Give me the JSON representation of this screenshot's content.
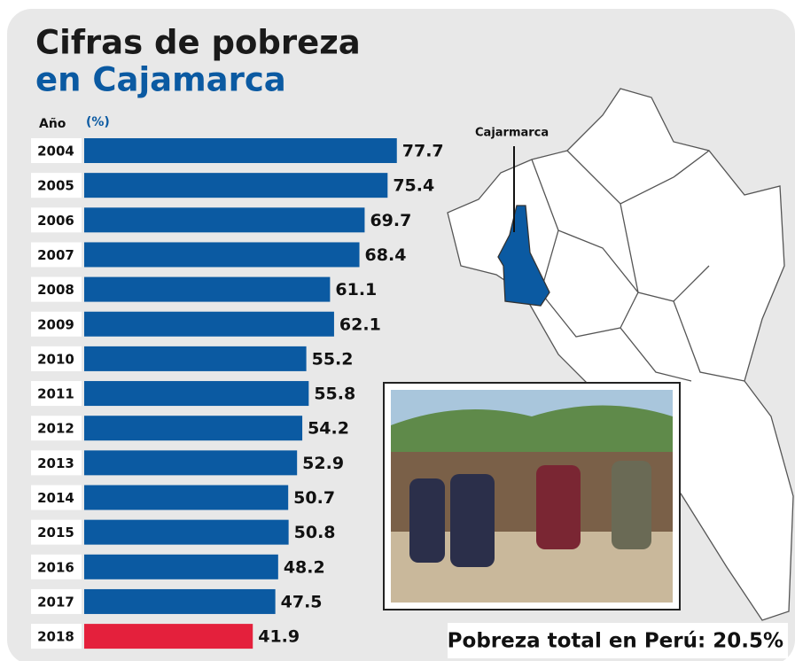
{
  "chart_data": {
    "type": "bar",
    "title": "Cifras de pobreza",
    "subtitle": "en Cajamarca",
    "category_label": "Año",
    "value_label": "(%)",
    "categories": [
      "2004",
      "2005",
      "2006",
      "2007",
      "2008",
      "2009",
      "2010",
      "2011",
      "2012",
      "2013",
      "2014",
      "2015",
      "2016",
      "2017",
      "2018"
    ],
    "values": [
      77.7,
      75.4,
      69.7,
      68.4,
      61.1,
      62.1,
      55.2,
      55.8,
      54.2,
      52.9,
      50.7,
      50.8,
      48.2,
      47.5,
      41.9
    ],
    "colors": [
      "#0b5aa2",
      "#0b5aa2",
      "#0b5aa2",
      "#0b5aa2",
      "#0b5aa2",
      "#0b5aa2",
      "#0b5aa2",
      "#0b5aa2",
      "#0b5aa2",
      "#0b5aa2",
      "#0b5aa2",
      "#0b5aa2",
      "#0b5aa2",
      "#0b5aa2",
      "#e4203c"
    ],
    "map_label": "Cajarmarca",
    "annotation": "Pobreza total en Perú: 20.5%"
  }
}
